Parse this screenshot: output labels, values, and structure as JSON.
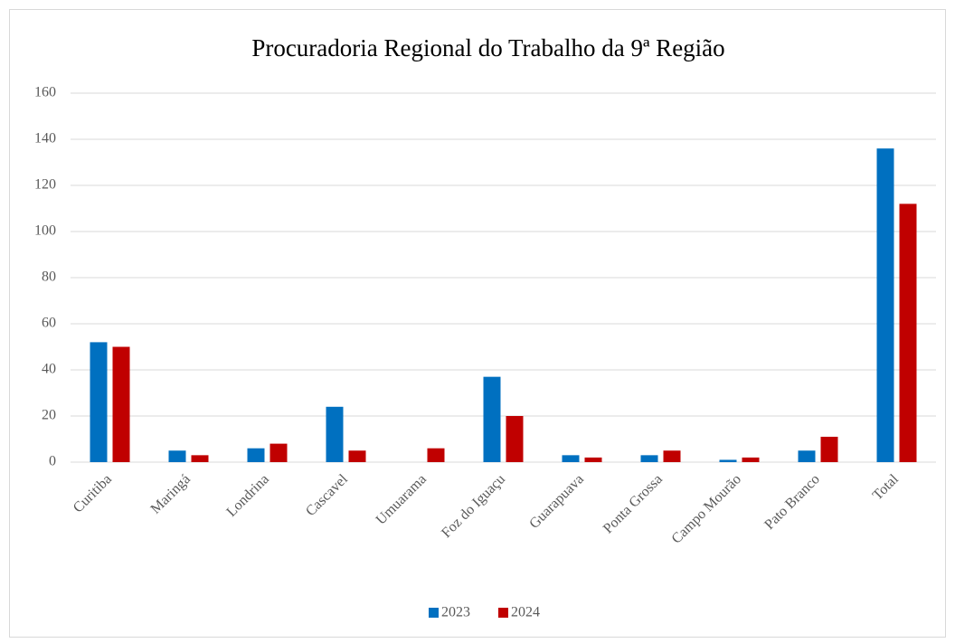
{
  "chart_data": {
    "type": "bar",
    "title": "Procuradoria Regional do Trabalho da 9ª Região",
    "categories": [
      "Curitiba",
      "Maringá",
      "Londrina",
      "Cascavel",
      "Umuarama",
      "Foz do Iguaçu",
      "Guarapuava",
      "Ponta Grossa",
      "Campo Mourão",
      "Pato Branco",
      "Total"
    ],
    "series": [
      {
        "name": "2023",
        "color": "#0070c0",
        "values": [
          52,
          5,
          6,
          24,
          0,
          37,
          3,
          3,
          1,
          5,
          136
        ]
      },
      {
        "name": "2024",
        "color": "#c00000",
        "values": [
          50,
          3,
          8,
          5,
          6,
          20,
          2,
          5,
          2,
          11,
          112
        ]
      }
    ],
    "ylim": [
      0,
      160
    ],
    "yticks": [
      0,
      20,
      40,
      60,
      80,
      100,
      120,
      140,
      160
    ],
    "grid": true,
    "legend": "bottom"
  }
}
